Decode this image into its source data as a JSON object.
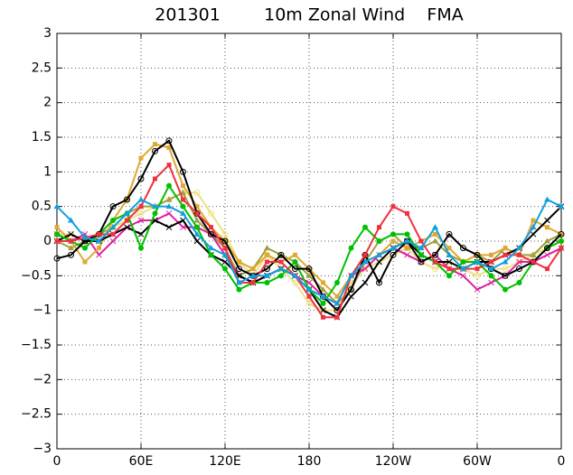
{
  "chart_data": {
    "type": "line",
    "title": "201301        10m Zonal Wind    FMA",
    "x": [
      0,
      10,
      20,
      30,
      40,
      50,
      60,
      70,
      80,
      90,
      100,
      110,
      120,
      130,
      140,
      150,
      160,
      170,
      180,
      190,
      200,
      210,
      220,
      230,
      240,
      250,
      260,
      270,
      280,
      290,
      300,
      310,
      320,
      330,
      340,
      350,
      360
    ],
    "xlim": [
      0,
      360
    ],
    "xticks": [
      0,
      {
        "value": 60,
        "label": "60E"
      },
      {
        "value": 120,
        "label": "120E"
      },
      180,
      {
        "value": 240,
        "label": "120W"
      },
      {
        "value": 300,
        "label": "60W"
      },
      {
        "value": 360,
        "label": "0"
      }
    ],
    "ylim": [
      -3,
      3
    ],
    "yticks": [
      {
        "value": -3,
        "label": "−3"
      },
      {
        "value": -2.5,
        "label": "−2.5"
      },
      {
        "value": -2,
        "label": "−2"
      },
      {
        "value": -1.5,
        "label": "−1.5"
      },
      {
        "value": -1,
        "label": "−1"
      },
      {
        "value": -0.5,
        "label": "−0.5"
      },
      0,
      0.5,
      1,
      1.5,
      2,
      2.5,
      3
    ],
    "grid": true,
    "series": [
      {
        "color": "#f0e080",
        "marker": "circle",
        "values": [
          0.1,
          0.1,
          0.0,
          0.0,
          0.2,
          0.3,
          0.4,
          0.5,
          0.6,
          0.7,
          0.7,
          0.4,
          0.1,
          -0.3,
          -0.5,
          -0.2,
          -0.4,
          -0.6,
          -0.9,
          -1.0,
          -1.0,
          -0.6,
          -0.4,
          -0.3,
          -0.2,
          -0.1,
          -0.3,
          -0.4,
          -0.3,
          -0.4,
          -0.5,
          -0.4,
          -0.4,
          -0.3,
          -0.2,
          -0.1,
          0.0
        ]
      },
      {
        "color": "#a0a040",
        "marker": "triangle",
        "values": [
          0.0,
          -0.1,
          0.0,
          0.1,
          0.2,
          0.4,
          0.5,
          0.5,
          0.6,
          0.7,
          0.3,
          0.1,
          -0.1,
          -0.5,
          -0.4,
          -0.1,
          -0.2,
          -0.3,
          -0.5,
          -0.7,
          -0.9,
          -0.7,
          -0.3,
          0.0,
          0.1,
          -0.1,
          -0.1,
          0.0,
          -0.2,
          -0.3,
          -0.2,
          -0.3,
          -0.1,
          -0.2,
          -0.2,
          0.0,
          0.1
        ]
      },
      {
        "color": "#e020a0",
        "marker": "cross",
        "values": [
          0.1,
          0.0,
          0.1,
          -0.2,
          0.0,
          0.2,
          0.3,
          0.3,
          0.4,
          0.2,
          0.2,
          0.1,
          -0.2,
          -0.5,
          -0.6,
          -0.5,
          -0.4,
          -0.5,
          -0.6,
          -0.8,
          -0.9,
          -0.5,
          -0.4,
          -0.2,
          -0.1,
          -0.2,
          -0.3,
          -0.2,
          -0.4,
          -0.5,
          -0.7,
          -0.6,
          -0.5,
          -0.3,
          -0.3,
          -0.2,
          -0.1
        ]
      },
      {
        "color": "#e0a830",
        "marker": "square",
        "values": [
          0.2,
          0.0,
          -0.3,
          -0.1,
          0.3,
          0.6,
          1.2,
          1.4,
          1.35,
          0.8,
          0.5,
          0.2,
          0.0,
          -0.3,
          -0.4,
          -0.2,
          -0.3,
          -0.2,
          -0.4,
          -0.6,
          -0.8,
          -0.5,
          -0.3,
          -0.2,
          0.0,
          -0.1,
          0.0,
          0.1,
          -0.1,
          -0.3,
          -0.2,
          -0.2,
          -0.1,
          -0.2,
          0.3,
          0.2,
          0.1
        ]
      },
      {
        "color": "#000000",
        "marker": "cross",
        "values": [
          0.0,
          0.1,
          0.0,
          0.0,
          0.1,
          0.2,
          0.1,
          0.3,
          0.2,
          0.3,
          0.0,
          -0.2,
          -0.3,
          -0.5,
          -0.6,
          -0.5,
          -0.4,
          -0.5,
          -0.7,
          -1.0,
          -1.1,
          -0.8,
          -0.6,
          -0.3,
          -0.1,
          0.0,
          -0.2,
          -0.3,
          -0.3,
          -0.4,
          -0.3,
          -0.3,
          -0.2,
          -0.1,
          0.1,
          0.3,
          0.5
        ]
      },
      {
        "color": "#00c000",
        "marker": "dot",
        "values": [
          0.1,
          0.0,
          -0.1,
          0.1,
          0.3,
          0.4,
          -0.1,
          0.4,
          0.8,
          0.5,
          0.2,
          -0.2,
          -0.4,
          -0.7,
          -0.6,
          -0.6,
          -0.5,
          -0.3,
          -0.7,
          -0.9,
          -0.6,
          -0.1,
          0.2,
          0.0,
          0.1,
          0.1,
          -0.2,
          -0.3,
          -0.5,
          -0.3,
          -0.3,
          -0.5,
          -0.7,
          -0.6,
          -0.3,
          -0.1,
          0.0
        ]
      },
      {
        "color": "#000000",
        "marker": "circle",
        "values": [
          -0.25,
          -0.2,
          0.0,
          0.1,
          0.5,
          0.6,
          0.9,
          1.3,
          1.45,
          1.0,
          0.4,
          0.1,
          0.0,
          -0.4,
          -0.5,
          -0.4,
          -0.2,
          -0.4,
          -0.4,
          -0.8,
          -1.0,
          -0.7,
          -0.2,
          -0.6,
          -0.2,
          0.0,
          -0.3,
          -0.2,
          0.1,
          -0.1,
          -0.2,
          -0.4,
          -0.5,
          -0.4,
          -0.3,
          -0.1,
          0.1
        ]
      },
      {
        "color": "#f03040",
        "marker": "square",
        "values": [
          0.0,
          0.0,
          0.05,
          0.1,
          0.1,
          0.3,
          0.5,
          0.9,
          1.1,
          0.6,
          0.4,
          0.2,
          -0.1,
          -0.6,
          -0.6,
          -0.3,
          -0.3,
          -0.5,
          -0.8,
          -1.1,
          -1.1,
          -0.5,
          -0.2,
          0.2,
          0.5,
          0.4,
          0.0,
          -0.3,
          -0.4,
          -0.4,
          -0.4,
          -0.3,
          -0.2,
          -0.2,
          -0.3,
          -0.4,
          -0.1
        ]
      },
      {
        "color": "#10a0e0",
        "marker": "triangle",
        "values": [
          0.5,
          0.3,
          0.05,
          0.0,
          0.2,
          0.4,
          0.6,
          0.5,
          0.5,
          0.4,
          0.1,
          -0.1,
          -0.2,
          -0.6,
          -0.5,
          -0.5,
          -0.4,
          -0.5,
          -0.7,
          -0.8,
          -0.9,
          -0.5,
          -0.3,
          -0.2,
          -0.1,
          0.0,
          -0.1,
          0.2,
          -0.2,
          -0.4,
          -0.3,
          -0.4,
          -0.3,
          -0.1,
          0.2,
          0.6,
          0.5
        ]
      }
    ]
  }
}
